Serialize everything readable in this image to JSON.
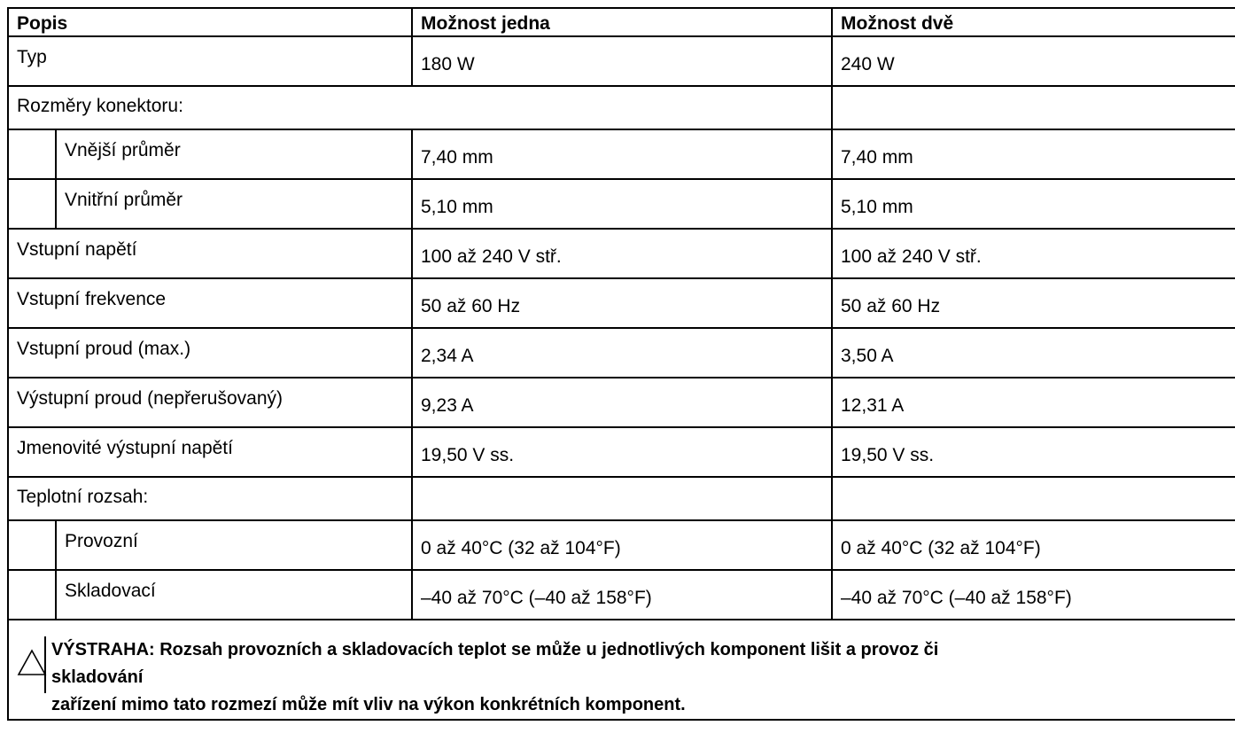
{
  "table": {
    "headers": [
      "Popis",
      "Možnost jedna",
      "Možnost dvě"
    ],
    "rows": {
      "typ": {
        "label": "Typ",
        "v1": "180 W",
        "v2": "240 W"
      },
      "rozmery": {
        "label": "Rozměry konektoru:"
      },
      "vnejsi": {
        "label": "Vnější průměr",
        "v1": "7,40 mm",
        "v2": "7,40 mm"
      },
      "vnitrni": {
        "label": "Vnitřní průměr",
        "v1": "5,10 mm",
        "v2": "5,10 mm"
      },
      "napeti": {
        "label": "Vstupní napětí",
        "v1": "100 až 240 V stř.",
        "v2": "100 až 240 V stř."
      },
      "frekvence": {
        "label": "Vstupní frekvence",
        "v1": "50 až 60 Hz",
        "v2": "50 až 60 Hz"
      },
      "proud": {
        "label": "Vstupní proud (max.)",
        "v1": "2,34 A",
        "v2": "3,50 A"
      },
      "vystupni_proud": {
        "label": "Výstupní proud (nepřerušovaný)",
        "v1": "9,23 A",
        "v2": "12,31 A"
      },
      "jmenovite": {
        "label": "Jmenovité výstupní napětí",
        "v1": "19,50 V ss.",
        "v2": "19,50 V ss."
      },
      "teplotni": {
        "label": "Teplotní rozsah:"
      },
      "provozni": {
        "label": "Provozní",
        "v1": "0 až 40°C (32 až 104°F)",
        "v2": "0 až 40°C (32 až 104°F)"
      },
      "skladovaci": {
        "label": "Skladovací",
        "v1": "–40 až 70°C (–40 až 158°F)",
        "v2": "–40 až 70°C (–40 až 158°F)"
      }
    }
  },
  "warning": {
    "icon": "warning-triangle-icon",
    "line1": "VÝSTRAHA: Rozsah provozních a skladovacích teplot se může u jednotlivých komponent lišit a provoz či skladování",
    "line2": "zařízení mimo tato rozmezí může mít vliv na výkon konkrétních komponent."
  }
}
